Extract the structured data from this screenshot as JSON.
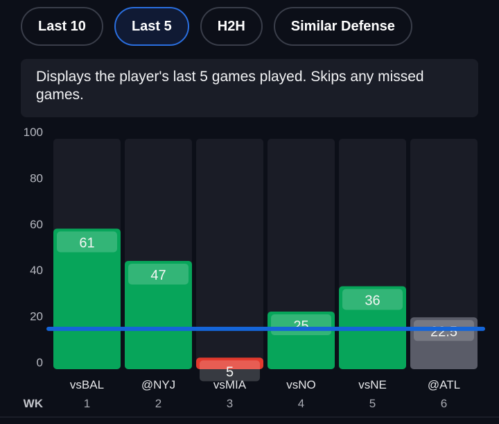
{
  "tabs": [
    {
      "label": "Last 10",
      "active": false
    },
    {
      "label": "Last 5",
      "active": true
    },
    {
      "label": "H2H",
      "active": false
    },
    {
      "label": "Similar Defense",
      "active": false
    }
  ],
  "description": "Displays the player's last 5 games played. Skips any missed games.",
  "chart_data": {
    "type": "bar",
    "categories": [
      "vsBAL",
      "@NYJ",
      "vsMIA",
      "vsNO",
      "vsNE",
      "@ATL"
    ],
    "weeks": [
      "1",
      "2",
      "3",
      "4",
      "5",
      "6"
    ],
    "week_label": "WK",
    "values": [
      61,
      47,
      5,
      25,
      36,
      22.5
    ],
    "value_labels": [
      "61",
      "47",
      "5",
      "25",
      "36",
      "22.5"
    ],
    "status": [
      "over",
      "over",
      "under",
      "over",
      "over",
      "projection"
    ],
    "line_value": 17.5,
    "yticks": [
      "0",
      "20",
      "40",
      "60",
      "80",
      "100"
    ],
    "ylim": [
      0,
      100
    ],
    "colors": {
      "over": "#07a55a",
      "under": "#e23a2e",
      "projection": "#5a5c68",
      "line": "#1565d8",
      "track": "#1a1c26"
    }
  }
}
